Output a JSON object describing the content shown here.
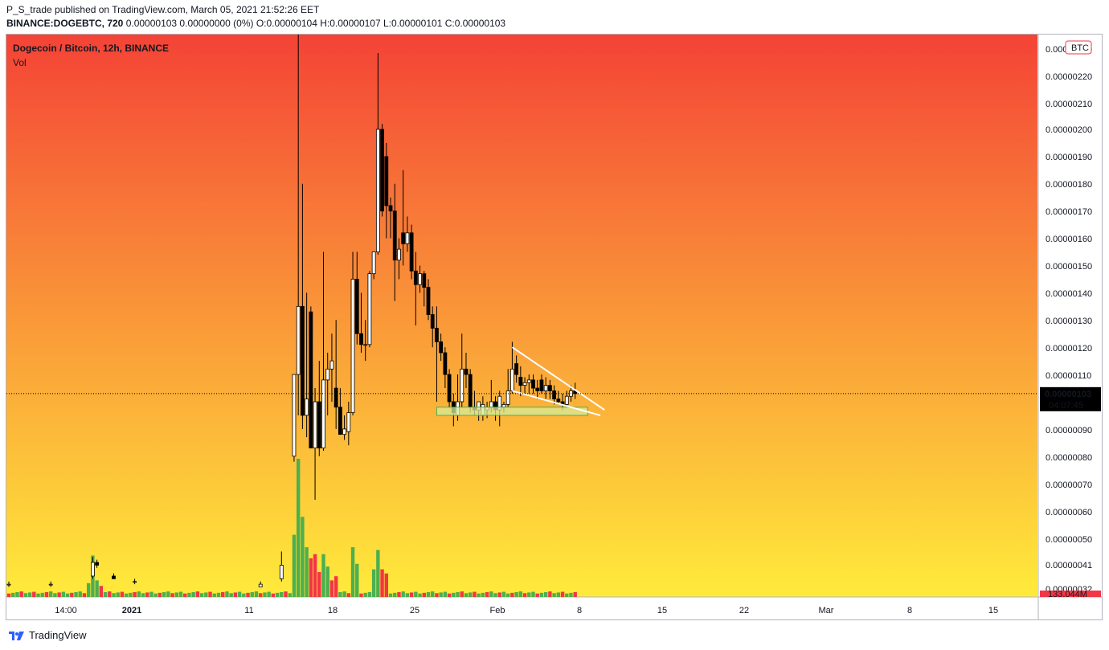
{
  "header": {
    "line1": "P_S_trade published on TradingView.com, March 05, 2021 21:52:26 EET",
    "symbol": "BINANCE:DOGEBTC, 720",
    "ohlc": "0.00000103 0.00000000 (0%) O:0.00000104 H:0.00000107 L:0.00000101 C:0.00000103"
  },
  "plot": {
    "title": "Dogecoin / Bitcoin, 12h, BINANCE",
    "volume_label": "Vol"
  },
  "price_axis": {
    "currency_badge": "BTC",
    "tick_labels": [
      "0.00000230",
      "0.00000220",
      "0.00000210",
      "0.00000200",
      "0.00000190",
      "0.00000180",
      "0.00000170",
      "0.00000160",
      "0.00000150",
      "0.00000140",
      "0.00000130",
      "0.00000120",
      "0.00000110",
      "0.00000090",
      "0.00000080",
      "0.00000070",
      "0.00000060",
      "0.00000050",
      "0.00000041",
      "0.00000032"
    ],
    "current_price": "0.00000103",
    "countdown": "04:07:45",
    "volume_label": "133.044M"
  },
  "time_axis": {
    "tick_labels": [
      "14:00",
      "2021",
      "11",
      "18",
      "25",
      "Feb",
      "8",
      "15",
      "22",
      "Mar",
      "8",
      "15"
    ]
  },
  "footer": {
    "brand": "TradingView"
  },
  "colors": {
    "up": "#ffffff",
    "down": "#000000",
    "vol_up": "#4caf50",
    "vol_down": "#f23645",
    "gradient_top": "#f44336",
    "gradient_bottom": "#ffeb3b",
    "zone_fill": "#d8eb9a",
    "zone_stroke": "#4caf50",
    "price_badge": "#000000",
    "vol_badge": "#f23645"
  },
  "chart_data": {
    "type": "candlestick",
    "title": "Dogecoin / Bitcoin, 12h, BINANCE",
    "x_unit": "12h candle index (index 0 ≈ Dec 27 2020 00:00, index 132 ≈ Mar 5 2021 12:00)",
    "ylim": [
      3.8e-07,
      2.35e-06
    ],
    "current_price": 1.03e-06,
    "candles": [
      {
        "i": 0,
        "o": 3.3e-07,
        "h": 3.4e-07,
        "l": 3.2e-07,
        "c": 3.3e-07
      },
      {
        "i": 10,
        "o": 3.3e-07,
        "h": 3.4e-07,
        "l": 3.2e-07,
        "c": 3.3e-07
      },
      {
        "i": 20,
        "o": 3.6e-07,
        "h": 4.3e-07,
        "l": 3.5e-07,
        "c": 4.1e-07
      },
      {
        "i": 21,
        "o": 4.1e-07,
        "h": 4.2e-07,
        "l": 3.9e-07,
        "c": 4e-07
      },
      {
        "i": 25,
        "o": 3.6e-07,
        "h": 3.7e-07,
        "l": 3.5e-07,
        "c": 3.5e-07
      },
      {
        "i": 30,
        "o": 3.4e-07,
        "h": 3.5e-07,
        "l": 3.3e-07,
        "c": 3.4e-07
      },
      {
        "i": 60,
        "o": 3.2e-07,
        "h": 3.4e-07,
        "l": 3.2e-07,
        "c": 3.3e-07
      },
      {
        "i": 65,
        "o": 3.5e-07,
        "h": 4.5e-07,
        "l": 3.4e-07,
        "c": 4e-07
      },
      {
        "i": 68,
        "o": 8e-07,
        "h": 1.1e-06,
        "l": 7.8e-07,
        "c": 1.1e-06
      },
      {
        "i": 69,
        "o": 1.1e-06,
        "h": 2.35e-06,
        "l": 9.5e-07,
        "c": 1.35e-06
      },
      {
        "i": 70,
        "o": 1.35e-06,
        "h": 1.8e-06,
        "l": 9e-07,
        "c": 9.5e-07
      },
      {
        "i": 71,
        "o": 9.5e-07,
        "h": 1.4e-06,
        "l": 8.7e-07,
        "c": 1.01e-06
      },
      {
        "i": 72,
        "o": 1.33e-06,
        "h": 1.35e-06,
        "l": 8.3e-07,
        "c": 8.3e-07
      },
      {
        "i": 73,
        "o": 8.3e-07,
        "h": 1.05e-06,
        "l": 6.4e-07,
        "c": 1e-06
      },
      {
        "i": 74,
        "o": 1e-06,
        "h": 1.15e-06,
        "l": 8e-07,
        "c": 8.3e-07
      },
      {
        "i": 75,
        "o": 8.3e-07,
        "h": 1.55e-06,
        "l": 8.2e-07,
        "c": 1.08e-06
      },
      {
        "i": 76,
        "o": 1.08e-06,
        "h": 1.18e-06,
        "l": 9.5e-07,
        "c": 1.12e-06
      },
      {
        "i": 77,
        "o": 1.12e-06,
        "h": 1.25e-06,
        "l": 1e-06,
        "c": 1.15e-06
      },
      {
        "i": 78,
        "o": 1.05e-06,
        "h": 1.3e-06,
        "l": 9e-07,
        "c": 9.8e-07
      },
      {
        "i": 79,
        "o": 9.8e-07,
        "h": 1.05e-06,
        "l": 8.8e-07,
        "c": 8.8e-07
      },
      {
        "i": 80,
        "o": 8.8e-07,
        "h": 9.5e-07,
        "l": 8.6e-07,
        "c": 9e-07
      },
      {
        "i": 81,
        "o": 8.9e-07,
        "h": 1e-06,
        "l": 8.4e-07,
        "c": 9.6e-07
      },
      {
        "i": 82,
        "o": 9.6e-07,
        "h": 1.55e-06,
        "l": 9.5e-07,
        "c": 1.45e-06
      },
      {
        "i": 83,
        "o": 1.45e-06,
        "h": 1.55e-06,
        "l": 1.21e-06,
        "c": 1.25e-06
      },
      {
        "i": 84,
        "o": 1.25e-06,
        "h": 1.4e-06,
        "l": 1.18e-06,
        "c": 1.21e-06
      },
      {
        "i": 85,
        "o": 1.21e-06,
        "h": 1.3e-06,
        "l": 1.15e-06,
        "c": 1.21e-06
      },
      {
        "i": 86,
        "o": 1.21e-06,
        "h": 1.48e-06,
        "l": 1.2e-06,
        "c": 1.47e-06
      },
      {
        "i": 87,
        "o": 1.47e-06,
        "h": 1.55e-06,
        "l": 1.45e-06,
        "c": 1.55e-06
      },
      {
        "i": 88,
        "o": 1.55e-06,
        "h": 2.28e-06,
        "l": 1.54e-06,
        "c": 2e-06
      },
      {
        "i": 89,
        "o": 2e-06,
        "h": 2.02e-06,
        "l": 1.68e-06,
        "c": 1.7e-06
      },
      {
        "i": 90,
        "o": 1.9e-06,
        "h": 1.95e-06,
        "l": 1.6e-06,
        "c": 1.72e-06
      },
      {
        "i": 91,
        "o": 1.72e-06,
        "h": 1.75e-06,
        "l": 1.6e-06,
        "c": 1.7e-06
      },
      {
        "i": 92,
        "o": 1.7e-06,
        "h": 1.8e-06,
        "l": 1.37e-06,
        "c": 1.52e-06
      },
      {
        "i": 93,
        "o": 1.52e-06,
        "h": 1.6e-06,
        "l": 1.45e-06,
        "c": 1.56e-06
      },
      {
        "i": 94,
        "o": 1.62e-06,
        "h": 1.85e-06,
        "l": 1.5e-06,
        "c": 1.58e-06
      },
      {
        "i": 95,
        "o": 1.58e-06,
        "h": 1.68e-06,
        "l": 1.55e-06,
        "c": 1.62e-06
      },
      {
        "i": 96,
        "o": 1.62e-06,
        "h": 1.65e-06,
        "l": 1.45e-06,
        "c": 1.48e-06
      },
      {
        "i": 97,
        "o": 1.48e-06,
        "h": 1.55e-06,
        "l": 1.28e-06,
        "c": 1.43e-06
      },
      {
        "i": 98,
        "o": 1.43e-06,
        "h": 1.5e-06,
        "l": 1.4e-06,
        "c": 1.47e-06
      },
      {
        "i": 99,
        "o": 1.47e-06,
        "h": 1.48e-06,
        "l": 1.35e-06,
        "c": 1.42e-06
      },
      {
        "i": 100,
        "o": 1.42e-06,
        "h": 1.45e-06,
        "l": 1.3e-06,
        "c": 1.32e-06
      },
      {
        "i": 101,
        "o": 1.32e-06,
        "h": 1.35e-06,
        "l": 1.2e-06,
        "c": 1.27e-06
      },
      {
        "i": 102,
        "o": 1.27e-06,
        "h": 1.35e-06,
        "l": 1e-06,
        "c": 1.22e-06
      },
      {
        "i": 103,
        "o": 1.22e-06,
        "h": 1.25e-06,
        "l": 1.15e-06,
        "c": 1.18e-06
      },
      {
        "i": 104,
        "o": 1.18e-06,
        "h": 1.2e-06,
        "l": 1.05e-06,
        "c": 1.1e-06
      },
      {
        "i": 105,
        "o": 1.1e-06,
        "h": 1.12e-06,
        "l": 9.8e-07,
        "c": 1e-06
      },
      {
        "i": 106,
        "o": 1e-06,
        "h": 1.03e-06,
        "l": 9.1e-07,
        "c": 9.6e-07
      },
      {
        "i": 107,
        "o": 9.5e-07,
        "h": 1.1e-06,
        "l": 9.3e-07,
        "c": 1e-06
      },
      {
        "i": 108,
        "o": 1e-06,
        "h": 1.25e-06,
        "l": 9.8e-07,
        "c": 1.12e-06
      },
      {
        "i": 109,
        "o": 1.12e-06,
        "h": 1.18e-06,
        "l": 1.05e-06,
        "c": 1.1e-06
      },
      {
        "i": 110,
        "o": 1.1e-06,
        "h": 1.12e-06,
        "l": 9.6e-07,
        "c": 9.8e-07
      },
      {
        "i": 111,
        "o": 9.8e-07,
        "h": 1.04e-06,
        "l": 9.5e-07,
        "c": 9.7e-07
      },
      {
        "i": 112,
        "o": 9.7e-07,
        "h": 1e-06,
        "l": 9.3e-07,
        "c": 1e-06
      },
      {
        "i": 113,
        "o": 9.5e-07,
        "h": 1.02e-06,
        "l": 9.3e-07,
        "c": 9.9e-07
      },
      {
        "i": 114,
        "o": 9.7e-07,
        "h": 1e-06,
        "l": 9.4e-07,
        "c": 9.8e-07
      },
      {
        "i": 115,
        "o": 9.8e-07,
        "h": 1.08e-06,
        "l": 9.6e-07,
        "c": 1e-06
      },
      {
        "i": 116,
        "o": 1e-06,
        "h": 1.02e-06,
        "l": 9.3e-07,
        "c": 9.7e-07
      },
      {
        "i": 117,
        "o": 9.7e-07,
        "h": 1.04e-06,
        "l": 9.1e-07,
        "c": 1.02e-06
      },
      {
        "i": 118,
        "o": 9.8e-07,
        "h": 1e-06,
        "l": 9.6e-07,
        "c": 9.9e-07
      },
      {
        "i": 119,
        "o": 9.9e-07,
        "h": 1.12e-06,
        "l": 9.8e-07,
        "c": 1.04e-06
      },
      {
        "i": 120,
        "o": 1.04e-06,
        "h": 1.22e-06,
        "l": 1.03e-06,
        "c": 1.12e-06
      },
      {
        "i": 121,
        "o": 1.14e-06,
        "h": 1.17e-06,
        "l": 1.07e-06,
        "c": 1.1e-06
      },
      {
        "i": 122,
        "o": 1.09e-06,
        "h": 1.13e-06,
        "l": 1.02e-06,
        "c": 1.06e-06
      },
      {
        "i": 123,
        "o": 1.06e-06,
        "h": 1.09e-06,
        "l": 1.03e-06,
        "c": 1.07e-06
      },
      {
        "i": 124,
        "o": 1.07e-06,
        "h": 1.1e-06,
        "l": 1.03e-06,
        "c": 1.08e-06
      },
      {
        "i": 125,
        "o": 1.08e-06,
        "h": 1.1e-06,
        "l": 1.03e-06,
        "c": 1.05e-06
      },
      {
        "i": 126,
        "o": 1.05e-06,
        "h": 1.08e-06,
        "l": 1.01e-06,
        "c": 1.04e-06
      },
      {
        "i": 127,
        "o": 1.08e-06,
        "h": 1.1e-06,
        "l": 1.03e-06,
        "c": 1.04e-06
      },
      {
        "i": 128,
        "o": 1.04e-06,
        "h": 1.09e-06,
        "l": 1.01e-06,
        "c": 1.06e-06
      },
      {
        "i": 129,
        "o": 1.06e-06,
        "h": 1.08e-06,
        "l": 1.01e-06,
        "c": 1.04e-06
      },
      {
        "i": 130,
        "o": 1.04e-06,
        "h": 1.06e-06,
        "l": 9.9e-07,
        "c": 1.01e-06
      },
      {
        "i": 131,
        "o": 1.01e-06,
        "h": 1.04e-06,
        "l": 9.9e-07,
        "c": 1e-06
      },
      {
        "i": 132,
        "o": 1e-06,
        "h": 1.03e-06,
        "l": 9.7e-07,
        "c": 9.9e-07
      },
      {
        "i": 133,
        "o": 9.9e-07,
        "h": 1.04e-06,
        "l": 9.8e-07,
        "c": 1.02e-06
      },
      {
        "i": 134,
        "o": 1.02e-06,
        "h": 1.06e-06,
        "l": 1e-06,
        "c": 1.04e-06
      },
      {
        "i": 135,
        "o": 1.04e-06,
        "h": 1.07e-06,
        "l": 1.01e-06,
        "c": 1.03e-06
      }
    ],
    "volume": {
      "unit": "relative (peak = 1.0)",
      "bars": [
        {
          "i": 68,
          "v": 0.45,
          "up": true
        },
        {
          "i": 69,
          "v": 1.0,
          "up": true
        },
        {
          "i": 70,
          "v": 0.58,
          "up": true
        },
        {
          "i": 71,
          "v": 0.36,
          "up": true
        },
        {
          "i": 72,
          "v": 0.28,
          "up": false
        },
        {
          "i": 73,
          "v": 0.31,
          "up": false
        },
        {
          "i": 74,
          "v": 0.18,
          "up": false
        },
        {
          "i": 75,
          "v": 0.31,
          "up": true
        },
        {
          "i": 76,
          "v": 0.22,
          "up": true
        },
        {
          "i": 77,
          "v": 0.12,
          "up": false
        },
        {
          "i": 78,
          "v": 0.15,
          "up": false
        },
        {
          "i": 82,
          "v": 0.36,
          "up": true
        },
        {
          "i": 83,
          "v": 0.24,
          "up": true
        },
        {
          "i": 87,
          "v": 0.2,
          "up": true
        },
        {
          "i": 88,
          "v": 0.34,
          "up": true
        },
        {
          "i": 89,
          "v": 0.2,
          "up": false
        },
        {
          "i": 90,
          "v": 0.17,
          "up": false
        },
        {
          "i": 20,
          "v": 0.3,
          "up": true
        },
        {
          "i": 21,
          "v": 0.12,
          "up": true
        },
        {
          "i": 19,
          "v": 0.1,
          "up": true
        },
        {
          "i": 22,
          "v": 0.08,
          "up": false
        }
      ]
    },
    "annotations": {
      "support_zone": {
        "x_from": 102,
        "x_to": 138,
        "price_from": 9.5e-07,
        "price_to": 9.8e-07
      },
      "wedge_upper": {
        "x1": 120,
        "p1": 1.2e-06,
        "x2": 142,
        "p2": 9.7e-07
      },
      "wedge_lower": {
        "x1": 120,
        "p1": 1.04e-06,
        "x2": 141,
        "p2": 9.5e-07
      }
    }
  }
}
